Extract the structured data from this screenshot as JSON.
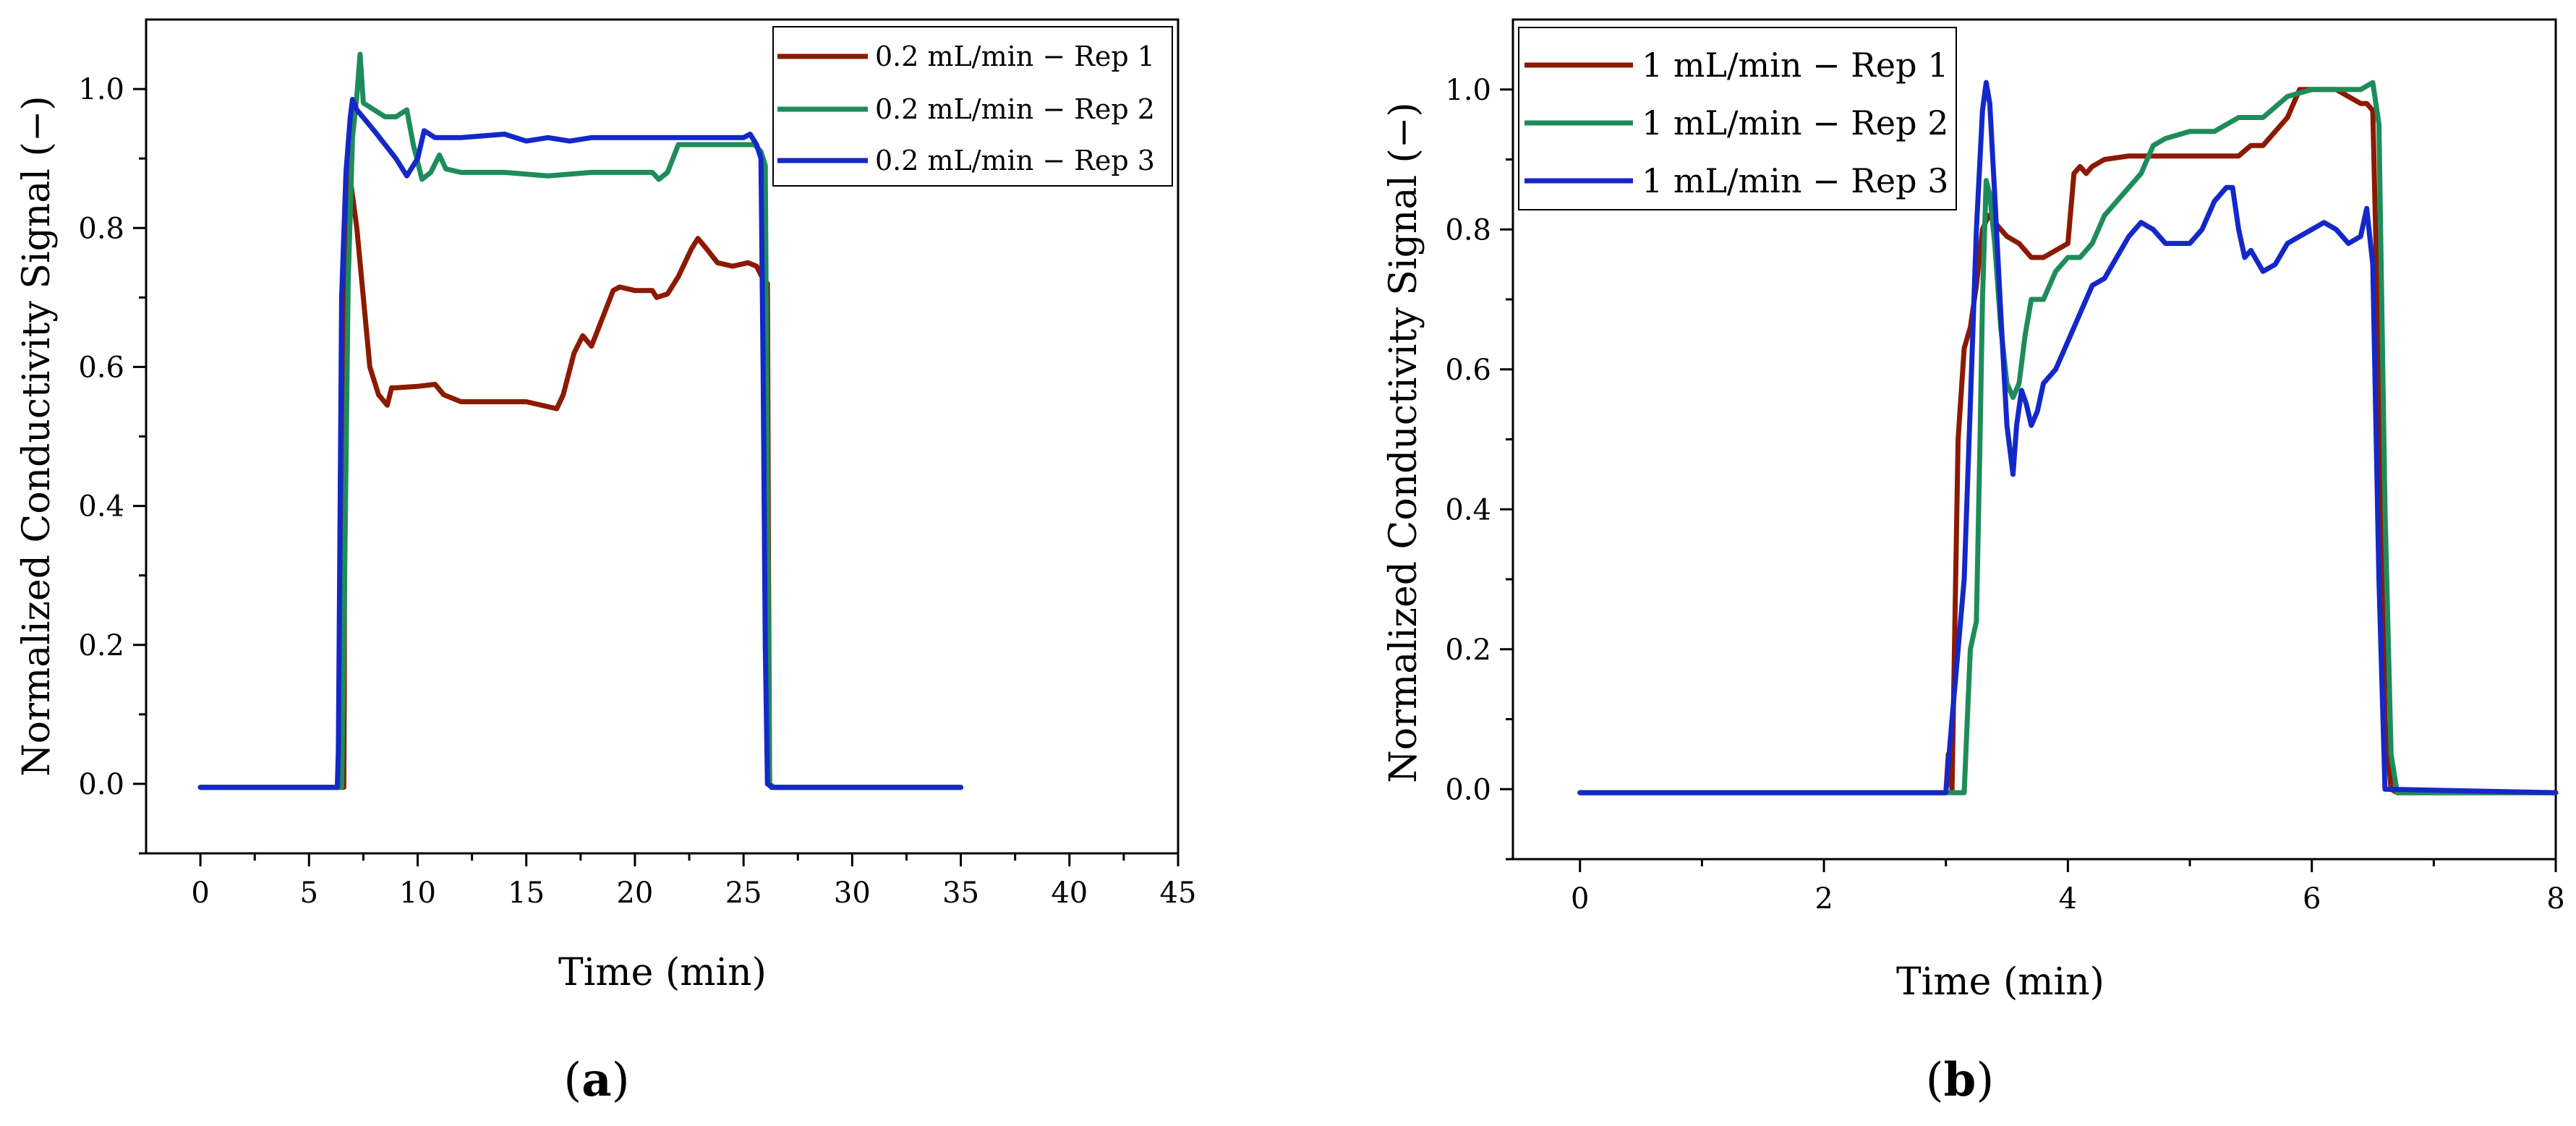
{
  "chart_data": [
    {
      "type": "line",
      "panel_label": "a",
      "xlabel": "Time (min)",
      "ylabel": "Normalized Conductivity Signal (−)",
      "xlim": [
        -2.5,
        45
      ],
      "ylim": [
        -0.1,
        1.1
      ],
      "xticks": [
        0,
        5,
        10,
        15,
        20,
        25,
        30,
        35,
        40,
        45
      ],
      "yticks": [
        0.0,
        0.2,
        0.4,
        0.6,
        0.8,
        1.0
      ],
      "xtick_labels": [
        "0",
        "5",
        "10",
        "15",
        "20",
        "25",
        "30",
        "35",
        "40",
        "45"
      ],
      "ytick_labels": [
        "0.0",
        "0.2",
        "0.4",
        "0.6",
        "0.8",
        "1.0"
      ],
      "legend_position": "top-right",
      "series": [
        {
          "name": "0.2 mL/min − Rep 1",
          "color": "#8B1A00",
          "x": [
            0,
            6.6,
            6.62,
            6.65,
            6.7,
            6.8,
            6.9,
            7.2,
            7.5,
            7.8,
            8.2,
            8.6,
            8.8,
            9.0,
            10.0,
            10.8,
            11.2,
            12.0,
            13.0,
            15.0,
            16.4,
            16.7,
            17.2,
            17.6,
            18.0,
            18.5,
            19.0,
            19.3,
            20.0,
            20.8,
            21.0,
            21.5,
            22.0,
            22.6,
            22.9,
            23.3,
            23.8,
            24.5,
            25.2,
            25.6,
            26.0,
            26.05,
            26.1,
            26.15,
            26.2,
            26.3,
            35.0
          ],
          "values": [
            -0.005,
            -0.005,
            0.13,
            0.5,
            0.82,
            0.9,
            0.87,
            0.8,
            0.7,
            0.6,
            0.56,
            0.545,
            0.57,
            0.57,
            0.572,
            0.575,
            0.56,
            0.55,
            0.55,
            0.55,
            0.54,
            0.56,
            0.62,
            0.645,
            0.63,
            0.67,
            0.71,
            0.715,
            0.71,
            0.71,
            0.7,
            0.705,
            0.73,
            0.77,
            0.785,
            0.77,
            0.75,
            0.745,
            0.75,
            0.745,
            0.72,
            0.4,
            0.72,
            0.3,
            0.0,
            -0.005,
            -0.005
          ]
        },
        {
          "name": "0.2 mL/min − Rep 2",
          "color": "#1E8C5A",
          "x": [
            0,
            6.5,
            6.6,
            6.8,
            7.0,
            7.2,
            7.35,
            7.5,
            8.0,
            8.5,
            9.0,
            9.5,
            9.8,
            10.2,
            10.6,
            11.0,
            11.3,
            12.0,
            14.0,
            16.0,
            18.0,
            20.0,
            20.8,
            21.1,
            21.5,
            22.0,
            25.5,
            25.8,
            26.0,
            26.1,
            26.2,
            26.4,
            35.0
          ],
          "values": [
            -0.005,
            -0.005,
            0.2,
            0.72,
            0.93,
            0.99,
            1.05,
            0.98,
            0.97,
            0.96,
            0.96,
            0.97,
            0.92,
            0.87,
            0.88,
            0.905,
            0.885,
            0.88,
            0.88,
            0.875,
            0.88,
            0.88,
            0.88,
            0.87,
            0.88,
            0.92,
            0.92,
            0.91,
            0.89,
            0.4,
            0.0,
            -0.005,
            -0.005
          ]
        },
        {
          "name": "0.2 mL/min − Rep 3",
          "color": "#1428C8",
          "x": [
            0,
            6.3,
            6.35,
            6.5,
            6.7,
            6.9,
            7.0,
            7.2,
            7.6,
            8.0,
            8.5,
            9.0,
            9.5,
            10.0,
            10.3,
            10.8,
            12.0,
            14.0,
            15.0,
            16.0,
            17.0,
            18.0,
            20.0,
            22.0,
            24.0,
            25.0,
            25.3,
            25.6,
            25.8,
            25.9,
            26.0,
            26.1,
            26.3,
            35.0
          ],
          "values": [
            -0.005,
            -0.005,
            0.05,
            0.7,
            0.88,
            0.96,
            0.985,
            0.97,
            0.955,
            0.94,
            0.92,
            0.9,
            0.875,
            0.9,
            0.94,
            0.93,
            0.93,
            0.935,
            0.925,
            0.93,
            0.925,
            0.93,
            0.93,
            0.93,
            0.93,
            0.93,
            0.935,
            0.92,
            0.9,
            0.6,
            0.2,
            0.0,
            -0.005,
            -0.005
          ]
        }
      ]
    },
    {
      "type": "line",
      "panel_label": "b",
      "xlabel": "Time (min)",
      "ylabel": "Normalized Conductivity Signal (−)",
      "xlim": [
        -0.55,
        8
      ],
      "ylim": [
        -0.1,
        1.1
      ],
      "xticks": [
        0,
        2,
        4,
        6,
        8
      ],
      "yticks": [
        0.0,
        0.2,
        0.4,
        0.6,
        0.8,
        1.0
      ],
      "xtick_labels": [
        "0",
        "2",
        "4",
        "6",
        "8"
      ],
      "ytick_labels": [
        "0.0",
        "0.2",
        "0.4",
        "0.6",
        "0.8",
        "1.0"
      ],
      "legend_position": "top-left",
      "series": [
        {
          "name": "1 mL/min − Rep 1",
          "color": "#8B1A00",
          "x": [
            0,
            3.0,
            3.02,
            3.05,
            3.08,
            3.1,
            3.15,
            3.2,
            3.25,
            3.3,
            3.35,
            3.4,
            3.5,
            3.6,
            3.7,
            3.8,
            3.9,
            4.0,
            4.05,
            4.1,
            4.15,
            4.2,
            4.3,
            4.5,
            4.8,
            5.0,
            5.2,
            5.4,
            5.5,
            5.6,
            5.7,
            5.8,
            5.9,
            6.0,
            6.2,
            6.3,
            6.4,
            6.45,
            6.5,
            6.55,
            6.6,
            6.65,
            6.7,
            8.0
          ],
          "values": [
            -0.005,
            -0.005,
            0.05,
            0.0,
            0.3,
            0.5,
            0.63,
            0.66,
            0.72,
            0.8,
            0.82,
            0.81,
            0.79,
            0.78,
            0.76,
            0.76,
            0.77,
            0.78,
            0.88,
            0.89,
            0.88,
            0.89,
            0.9,
            0.905,
            0.905,
            0.905,
            0.905,
            0.905,
            0.92,
            0.92,
            0.94,
            0.96,
            1.0,
            1.0,
            1.0,
            0.99,
            0.98,
            0.98,
            0.97,
            0.6,
            0.1,
            0.0,
            -0.005,
            -0.005
          ]
        },
        {
          "name": "1 mL/min − Rep 2",
          "color": "#1E8C5A",
          "x": [
            0,
            3.15,
            3.2,
            3.25,
            3.28,
            3.3,
            3.33,
            3.36,
            3.4,
            3.45,
            3.5,
            3.55,
            3.6,
            3.65,
            3.7,
            3.75,
            3.8,
            3.9,
            4.0,
            4.1,
            4.2,
            4.3,
            4.4,
            4.5,
            4.6,
            4.7,
            4.8,
            5.0,
            5.2,
            5.4,
            5.6,
            5.8,
            6.0,
            6.2,
            6.4,
            6.5,
            6.55,
            6.6,
            6.65,
            6.7,
            8.0
          ],
          "values": [
            -0.005,
            -0.005,
            0.2,
            0.24,
            0.5,
            0.7,
            0.87,
            0.85,
            0.78,
            0.66,
            0.58,
            0.56,
            0.58,
            0.65,
            0.7,
            0.7,
            0.7,
            0.74,
            0.76,
            0.76,
            0.78,
            0.82,
            0.84,
            0.86,
            0.88,
            0.92,
            0.93,
            0.94,
            0.94,
            0.96,
            0.96,
            0.99,
            1.0,
            1.0,
            1.0,
            1.01,
            0.95,
            0.4,
            0.05,
            -0.005,
            -0.005
          ]
        },
        {
          "name": "1 mL/min − Rep 3",
          "color": "#1428C8",
          "x": [
            0,
            3.0,
            3.05,
            3.1,
            3.15,
            3.2,
            3.25,
            3.3,
            3.33,
            3.36,
            3.4,
            3.45,
            3.5,
            3.55,
            3.58,
            3.62,
            3.66,
            3.7,
            3.75,
            3.8,
            3.9,
            4.0,
            4.1,
            4.2,
            4.3,
            4.4,
            4.5,
            4.6,
            4.7,
            4.8,
            4.9,
            5.0,
            5.1,
            5.2,
            5.3,
            5.35,
            5.4,
            5.45,
            5.5,
            5.6,
            5.7,
            5.8,
            5.9,
            6.0,
            6.1,
            6.2,
            6.3,
            6.4,
            6.45,
            6.5,
            6.55,
            6.6,
            8.0
          ],
          "values": [
            -0.005,
            -0.005,
            0.1,
            0.2,
            0.3,
            0.55,
            0.8,
            0.97,
            1.01,
            0.98,
            0.85,
            0.68,
            0.52,
            0.45,
            0.52,
            0.57,
            0.55,
            0.52,
            0.54,
            0.58,
            0.6,
            0.64,
            0.68,
            0.72,
            0.73,
            0.76,
            0.79,
            0.81,
            0.8,
            0.78,
            0.78,
            0.78,
            0.8,
            0.84,
            0.86,
            0.86,
            0.8,
            0.76,
            0.77,
            0.74,
            0.75,
            0.78,
            0.79,
            0.8,
            0.81,
            0.8,
            0.78,
            0.79,
            0.83,
            0.75,
            0.3,
            0.0,
            -0.005
          ]
        }
      ]
    }
  ]
}
